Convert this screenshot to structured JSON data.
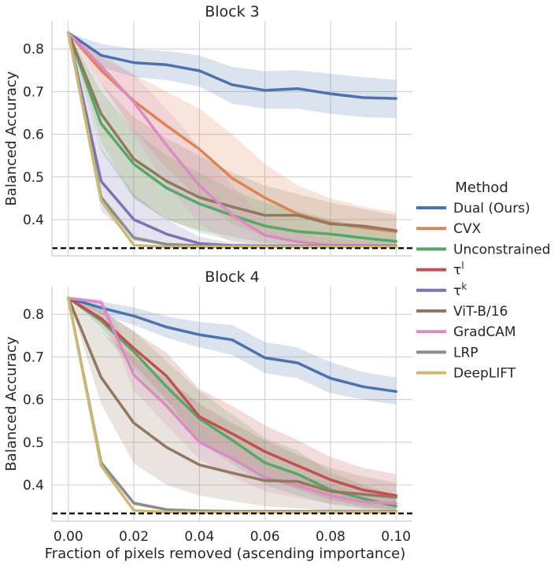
{
  "figure": {
    "xlabel": "Fraction of pixels removed (ascending importance)",
    "ylabel": "Balanced Accuracy",
    "legend_title": "Method",
    "legend_items": [
      {
        "label": "Dual (Ours)",
        "color": "#4c72b0"
      },
      {
        "label": "CVX",
        "color": "#dd8452"
      },
      {
        "label": "Unconstrained",
        "color": "#55a868"
      },
      {
        "label": "τ^l",
        "color": "#c44e52"
      },
      {
        "label": "τ^k",
        "color": "#8172b3"
      },
      {
        "label": "ViT-B/16",
        "color": "#937860"
      },
      {
        "label": "GradCAM",
        "color": "#da8bc3"
      },
      {
        "label": "LRP",
        "color": "#8c8c8c"
      },
      {
        "label": "DeepLIFT",
        "color": "#ccb974"
      }
    ]
  },
  "chart_data": [
    {
      "type": "line",
      "title": "Block 3",
      "xlabel": "",
      "ylabel": "Balanced Accuracy",
      "x": [
        0.0,
        0.01,
        0.02,
        0.03,
        0.04,
        0.05,
        0.06,
        0.07,
        0.08,
        0.09,
        0.1
      ],
      "xticks": [
        "0.00",
        "0.02",
        "0.04",
        "0.06",
        "0.08",
        "0.10"
      ],
      "yticks": [
        "0.4",
        "0.5",
        "0.6",
        "0.7",
        "0.8"
      ],
      "xlim": [
        -0.005,
        0.105
      ],
      "ylim": [
        0.315,
        0.865
      ],
      "chance_level": 0.333,
      "grid": true,
      "series": [
        {
          "name": "Dual (Ours)",
          "color": "#4c72b0",
          "values": [
            0.838,
            0.785,
            0.768,
            0.763,
            0.749,
            0.716,
            0.703,
            0.707,
            0.695,
            0.686,
            0.684
          ],
          "lower": [
            0.838,
            0.758,
            0.734,
            0.727,
            0.712,
            0.672,
            0.66,
            0.66,
            0.648,
            0.64,
            0.638
          ],
          "upper": [
            0.838,
            0.812,
            0.8,
            0.795,
            0.785,
            0.758,
            0.748,
            0.75,
            0.742,
            0.734,
            0.728
          ]
        },
        {
          "name": "CVX",
          "color": "#dd8452",
          "values": [
            0.838,
            0.75,
            0.678,
            0.62,
            0.565,
            0.497,
            0.451,
            0.413,
            0.392,
            0.381,
            0.372
          ],
          "lower": [
            0.838,
            0.72,
            0.61,
            0.52,
            0.45,
            0.39,
            0.36,
            0.345,
            0.338,
            0.336,
            0.335
          ],
          "upper": [
            0.838,
            0.78,
            0.74,
            0.7,
            0.66,
            0.6,
            0.53,
            0.48,
            0.45,
            0.43,
            0.418
          ]
        },
        {
          "name": "Unconstrained",
          "color": "#55a868",
          "values": [
            0.838,
            0.625,
            0.53,
            0.474,
            0.437,
            0.41,
            0.385,
            0.372,
            0.366,
            0.357,
            0.349
          ],
          "lower": [
            0.838,
            0.56,
            0.45,
            0.4,
            0.37,
            0.35,
            0.34,
            0.337,
            0.336,
            0.335,
            0.335
          ],
          "upper": [
            0.838,
            0.7,
            0.61,
            0.55,
            0.51,
            0.47,
            0.44,
            0.42,
            0.4,
            0.385,
            0.372
          ]
        },
        {
          "name": "ViT-B/16",
          "color": "#937860",
          "values": [
            0.838,
            0.648,
            0.542,
            0.49,
            0.452,
            0.43,
            0.41,
            0.41,
            0.39,
            0.385,
            0.374
          ],
          "lower": [
            0.838,
            0.58,
            0.45,
            0.4,
            0.375,
            0.36,
            0.345,
            0.34,
            0.338,
            0.337,
            0.335
          ],
          "upper": [
            0.838,
            0.72,
            0.64,
            0.59,
            0.55,
            0.51,
            0.48,
            0.46,
            0.44,
            0.425,
            0.41
          ]
        },
        {
          "name": "GradCAM",
          "color": "#da8bc3",
          "values": [
            0.838,
            0.76,
            0.675,
            0.574,
            0.48,
            0.411,
            0.363,
            0.348,
            0.34,
            0.339,
            0.339
          ],
          "lower": [
            0.838,
            0.72,
            0.6,
            0.48,
            0.39,
            0.345,
            0.336,
            0.335,
            0.335,
            0.335,
            0.335
          ],
          "upper": [
            0.838,
            0.79,
            0.74,
            0.66,
            0.57,
            0.48,
            0.4,
            0.37,
            0.355,
            0.35,
            0.348
          ]
        },
        {
          "name": "τ^k",
          "color": "#8172b3",
          "values": [
            0.838,
            0.49,
            0.4,
            0.366,
            0.344,
            0.339,
            0.338,
            0.338,
            0.338,
            0.338,
            0.338
          ],
          "lower": [
            0.838,
            0.42,
            0.35,
            0.338,
            0.335,
            0.335,
            0.335,
            0.335,
            0.335,
            0.335,
            0.335
          ],
          "upper": [
            0.838,
            0.57,
            0.46,
            0.4,
            0.36,
            0.345,
            0.342,
            0.341,
            0.341,
            0.341,
            0.341
          ]
        },
        {
          "name": "LRP",
          "color": "#8c8c8c",
          "values": [
            0.838,
            0.452,
            0.357,
            0.342,
            0.339,
            0.338,
            0.338,
            0.338,
            0.338,
            0.338,
            0.338
          ],
          "lower": [
            0.838,
            0.445,
            0.352,
            0.339,
            0.337,
            0.337,
            0.337,
            0.337,
            0.337,
            0.337,
            0.337
          ],
          "upper": [
            0.838,
            0.46,
            0.362,
            0.345,
            0.341,
            0.34,
            0.34,
            0.34,
            0.34,
            0.34,
            0.34
          ]
        },
        {
          "name": "DeepLIFT",
          "color": "#ccb974",
          "values": [
            0.838,
            0.445,
            0.34,
            0.336,
            0.336,
            0.336,
            0.336,
            0.336,
            0.336,
            0.336,
            0.336
          ],
          "lower": [
            0.838,
            0.438,
            0.337,
            0.335,
            0.335,
            0.335,
            0.335,
            0.335,
            0.335,
            0.335,
            0.335
          ],
          "upper": [
            0.838,
            0.452,
            0.343,
            0.338,
            0.338,
            0.338,
            0.338,
            0.338,
            0.338,
            0.338,
            0.338
          ]
        }
      ]
    },
    {
      "type": "line",
      "title": "Block 4",
      "xlabel": "Fraction of pixels removed (ascending importance)",
      "ylabel": "Balanced Accuracy",
      "x": [
        0.0,
        0.01,
        0.02,
        0.03,
        0.04,
        0.05,
        0.06,
        0.07,
        0.08,
        0.09,
        0.1
      ],
      "xticks": [
        "0.00",
        "0.02",
        "0.04",
        "0.06",
        "0.08",
        "0.10"
      ],
      "yticks": [
        "0.4",
        "0.5",
        "0.6",
        "0.7",
        "0.8"
      ],
      "xlim": [
        -0.005,
        0.105
      ],
      "ylim": [
        0.315,
        0.865
      ],
      "chance_level": 0.333,
      "grid": true,
      "series": [
        {
          "name": "Dual (Ours)",
          "color": "#4c72b0",
          "values": [
            0.838,
            0.815,
            0.796,
            0.77,
            0.752,
            0.74,
            0.698,
            0.686,
            0.65,
            0.63,
            0.619
          ],
          "lower": [
            0.838,
            0.8,
            0.775,
            0.745,
            0.722,
            0.705,
            0.662,
            0.65,
            0.615,
            0.6,
            0.588
          ],
          "upper": [
            0.838,
            0.83,
            0.816,
            0.795,
            0.782,
            0.775,
            0.735,
            0.722,
            0.688,
            0.664,
            0.652
          ]
        },
        {
          "name": "Unconstrained",
          "color": "#55a868",
          "values": [
            0.838,
            0.785,
            0.712,
            0.63,
            0.555,
            0.505,
            0.452,
            0.425,
            0.388,
            0.368,
            0.35
          ],
          "lower": [
            0.838,
            0.76,
            0.67,
            0.58,
            0.5,
            0.45,
            0.4,
            0.375,
            0.355,
            0.345,
            0.338
          ],
          "upper": [
            0.838,
            0.81,
            0.76,
            0.69,
            0.62,
            0.565,
            0.51,
            0.48,
            0.43,
            0.4,
            0.375
          ]
        },
        {
          "name": "τ^l",
          "color": "#c44e52",
          "values": [
            0.838,
            0.79,
            0.72,
            0.655,
            0.56,
            0.52,
            0.478,
            0.445,
            0.412,
            0.388,
            0.375
          ],
          "lower": [
            0.838,
            0.77,
            0.68,
            0.6,
            0.5,
            0.46,
            0.42,
            0.39,
            0.365,
            0.35,
            0.342
          ],
          "upper": [
            0.838,
            0.81,
            0.76,
            0.71,
            0.625,
            0.585,
            0.54,
            0.505,
            0.465,
            0.44,
            0.425
          ]
        },
        {
          "name": "GradCAM",
          "color": "#da8bc3",
          "values": [
            0.838,
            0.828,
            0.658,
            0.585,
            0.5,
            0.462,
            0.417,
            0.398,
            0.375,
            0.36,
            0.357
          ],
          "lower": [
            0.838,
            0.815,
            0.62,
            0.54,
            0.46,
            0.42,
            0.385,
            0.37,
            0.355,
            0.345,
            0.342
          ],
          "upper": [
            0.838,
            0.838,
            0.7,
            0.63,
            0.545,
            0.505,
            0.455,
            0.428,
            0.4,
            0.38,
            0.372
          ]
        },
        {
          "name": "ViT-B/16",
          "color": "#937860",
          "values": [
            0.838,
            0.652,
            0.545,
            0.488,
            0.447,
            0.428,
            0.41,
            0.408,
            0.385,
            0.378,
            0.371
          ],
          "lower": [
            0.838,
            0.59,
            0.45,
            0.4,
            0.375,
            0.362,
            0.35,
            0.345,
            0.34,
            0.338,
            0.336
          ],
          "upper": [
            0.838,
            0.76,
            0.7,
            0.65,
            0.59,
            0.545,
            0.505,
            0.47,
            0.44,
            0.42,
            0.405
          ]
        },
        {
          "name": "LRP",
          "color": "#8c8c8c",
          "values": [
            0.838,
            0.452,
            0.357,
            0.342,
            0.339,
            0.338,
            0.338,
            0.338,
            0.338,
            0.338,
            0.338
          ],
          "lower": [
            0.838,
            0.445,
            0.352,
            0.339,
            0.337,
            0.337,
            0.337,
            0.337,
            0.337,
            0.337,
            0.337
          ],
          "upper": [
            0.838,
            0.46,
            0.362,
            0.345,
            0.341,
            0.34,
            0.34,
            0.34,
            0.34,
            0.34,
            0.34
          ]
        },
        {
          "name": "DeepLIFT",
          "color": "#ccb974",
          "values": [
            0.838,
            0.445,
            0.34,
            0.336,
            0.336,
            0.336,
            0.336,
            0.336,
            0.336,
            0.336,
            0.336
          ],
          "lower": [
            0.838,
            0.438,
            0.337,
            0.335,
            0.335,
            0.335,
            0.335,
            0.335,
            0.335,
            0.335,
            0.335
          ],
          "upper": [
            0.838,
            0.452,
            0.343,
            0.338,
            0.338,
            0.338,
            0.338,
            0.338,
            0.338,
            0.338,
            0.338
          ]
        }
      ]
    }
  ]
}
